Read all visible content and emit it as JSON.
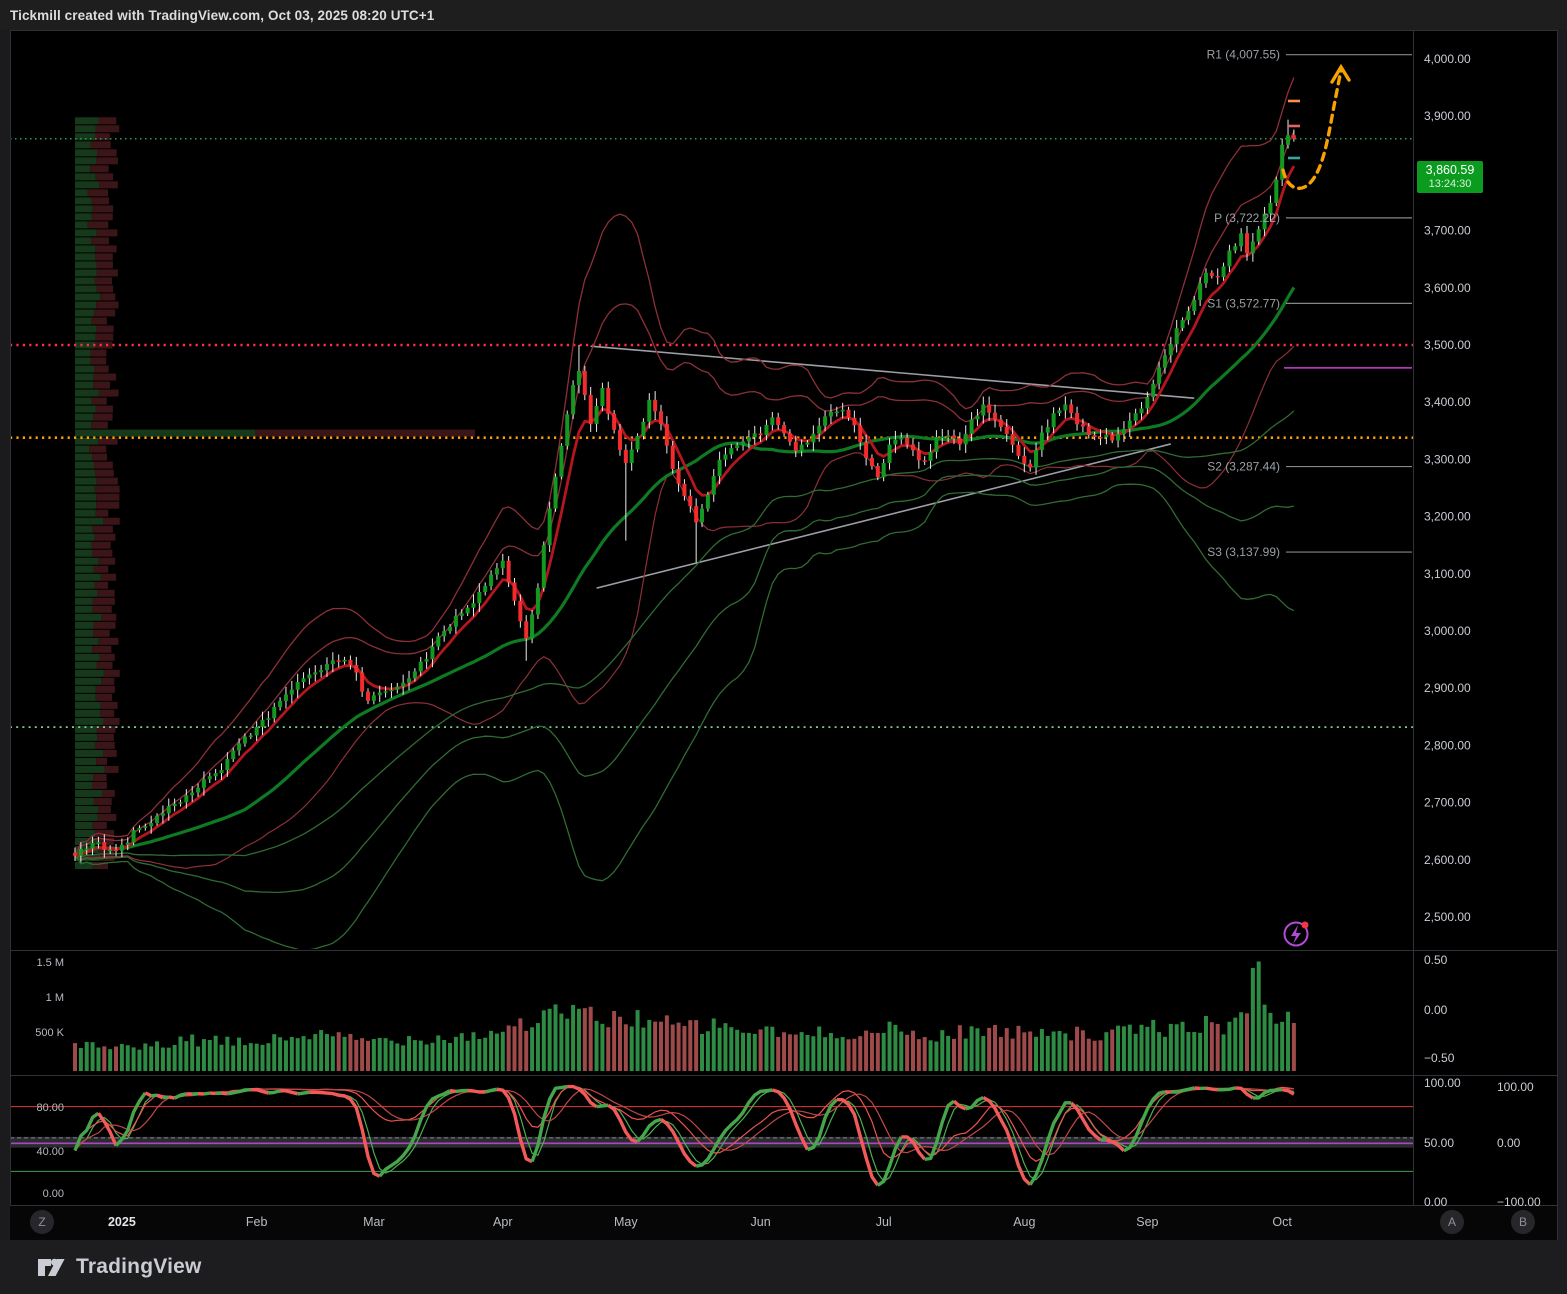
{
  "topbar": {
    "text": "Tickmill created with TradingView.com, Oct 03, 2025 08:20 UTC+1"
  },
  "logo": {
    "text": "TradingView"
  },
  "buttons": {
    "timezone": "Z",
    "source_a": "A",
    "source_b": "B"
  },
  "last_price": {
    "value": "3,860.59",
    "countdown": "13:24:30",
    "numeric": 3860.59
  },
  "price_scale": {
    "labels": [
      "4,000.00",
      "3,900.00",
      "3,800.00",
      "3,700.00",
      "3,600.00",
      "3,500.00",
      "3,400.00",
      "3,300.00",
      "3,200.00",
      "3,100.00",
      "3,000.00",
      "2,900.00",
      "2,800.00",
      "2,700.00",
      "2,600.00",
      "2,500.00"
    ]
  },
  "pivots": [
    {
      "label": "R1 (4,007.55)",
      "value": 4007.55
    },
    {
      "label": "P (3,722.22)",
      "value": 3722.22
    },
    {
      "label": "S1 (3,572.77)",
      "value": 3572.77
    },
    {
      "label": "S2 (3,287.44)",
      "value": 3287.44
    },
    {
      "label": "S3 (3,137.99)",
      "value": 3137.99
    }
  ],
  "volume_pane": {
    "left_labels": [
      "1.5 M",
      "1 M",
      "500 K"
    ],
    "right_labels": [
      "0.50",
      "0.00",
      "−0.50"
    ]
  },
  "osc_pane": {
    "left_labels": [
      "80.00",
      "40.00",
      "0.00"
    ],
    "right_labels_a": [
      "100.00",
      "50.00",
      "0.00"
    ],
    "right_labels_b": [
      "100.00",
      "0.00",
      "−100.00"
    ]
  },
  "time_axis": {
    "labels": [
      "2025",
      "Feb",
      "Mar",
      "Apr",
      "May",
      "Jun",
      "Jul",
      "Aug",
      "Sep",
      "Oct"
    ],
    "bar_index": [
      8,
      31,
      51,
      73,
      94,
      117,
      138,
      162,
      183,
      206
    ]
  },
  "colors": {
    "candle_up": "#13991f",
    "candle_down": "#f22c2c",
    "wick": "#ececec",
    "vol_up": "#2e8b43",
    "vol_down": "#9e4a4a",
    "profile_buy": "#17391b",
    "profile_sell": "#3c1518",
    "band_red": "#8c3038",
    "ema_red": "#b3161f",
    "basis_green": "#0e7a22",
    "band_green": "#2f6b33",
    "last_price_bg": "#0a9b1f",
    "last_price_line": "#2f9e4f",
    "hline_red": "#ff3040",
    "hline_orange": "#ff9d00",
    "hline_green_low": "#7bcf8c",
    "purple_line": "#cf3be0",
    "pivot_gray": "#9aa0a6",
    "trendline_gray": "#aeb1bb",
    "arrow_orange": "#f7a200",
    "osc_up": "#47a64c",
    "osc_down": "#f25a5a",
    "osc_thin_green": "#4caf50",
    "osc_thin_red": "#ef5350",
    "axis_text": "#c9cdd4",
    "pane_border": "#2e3138"
  },
  "chart_data": {
    "type": "candlestick",
    "title": "",
    "ylim": [
      2500,
      4000
    ],
    "bars": 209,
    "close_anchors": [
      [
        0,
        2606
      ],
      [
        3,
        2632
      ],
      [
        6,
        2615
      ],
      [
        8,
        2624
      ],
      [
        10,
        2648
      ],
      [
        13,
        2668
      ],
      [
        16,
        2694
      ],
      [
        19,
        2712
      ],
      [
        22,
        2738
      ],
      [
        25,
        2762
      ],
      [
        28,
        2798
      ],
      [
        31,
        2834
      ],
      [
        34,
        2862
      ],
      [
        37,
        2902
      ],
      [
        40,
        2926
      ],
      [
        43,
        2938
      ],
      [
        46,
        2952
      ],
      [
        48,
        2924
      ],
      [
        50,
        2874
      ],
      [
        53,
        2898
      ],
      [
        56,
        2908
      ],
      [
        59,
        2942
      ],
      [
        62,
        2986
      ],
      [
        65,
        3024
      ],
      [
        68,
        3052
      ],
      [
        71,
        3098
      ],
      [
        73,
        3124
      ],
      [
        75,
        3048
      ],
      [
        77,
        2986
      ],
      [
        79,
        3078
      ],
      [
        81,
        3218
      ],
      [
        83,
        3326
      ],
      [
        85,
        3430
      ],
      [
        86,
        3452
      ],
      [
        88,
        3366
      ],
      [
        90,
        3420
      ],
      [
        92,
        3348
      ],
      [
        94,
        3288
      ],
      [
        96,
        3338
      ],
      [
        98,
        3404
      ],
      [
        100,
        3358
      ],
      [
        102,
        3282
      ],
      [
        104,
        3234
      ],
      [
        106,
        3192
      ],
      [
        108,
        3244
      ],
      [
        110,
        3294
      ],
      [
        112,
        3324
      ],
      [
        114,
        3334
      ],
      [
        117,
        3346
      ],
      [
        119,
        3374
      ],
      [
        121,
        3348
      ],
      [
        123,
        3314
      ],
      [
        125,
        3334
      ],
      [
        127,
        3364
      ],
      [
        129,
        3388
      ],
      [
        131,
        3390
      ],
      [
        133,
        3354
      ],
      [
        135,
        3302
      ],
      [
        137,
        3274
      ],
      [
        139,
        3324
      ],
      [
        141,
        3344
      ],
      [
        143,
        3312
      ],
      [
        145,
        3292
      ],
      [
        147,
        3334
      ],
      [
        149,
        3344
      ],
      [
        151,
        3324
      ],
      [
        153,
        3364
      ],
      [
        155,
        3394
      ],
      [
        157,
        3372
      ],
      [
        159,
        3344
      ],
      [
        161,
        3304
      ],
      [
        163,
        3286
      ],
      [
        165,
        3344
      ],
      [
        167,
        3376
      ],
      [
        169,
        3396
      ],
      [
        171,
        3362
      ],
      [
        173,
        3348
      ],
      [
        175,
        3340
      ],
      [
        177,
        3338
      ],
      [
        179,
        3356
      ],
      [
        181,
        3376
      ],
      [
        183,
        3412
      ],
      [
        185,
        3458
      ],
      [
        187,
        3506
      ],
      [
        189,
        3548
      ],
      [
        191,
        3582
      ],
      [
        193,
        3622
      ],
      [
        195,
        3616
      ],
      [
        197,
        3662
      ],
      [
        199,
        3692
      ],
      [
        200,
        3656
      ],
      [
        202,
        3706
      ],
      [
        204,
        3752
      ],
      [
        205,
        3792
      ],
      [
        206,
        3848
      ],
      [
        207,
        3866
      ],
      [
        208,
        3860.59
      ]
    ],
    "wick_spikes": [
      [
        77,
        "low",
        2948
      ],
      [
        86,
        "high",
        3500
      ],
      [
        94,
        "low",
        3158
      ],
      [
        106,
        "low",
        3120
      ],
      [
        207,
        "high",
        3894
      ]
    ],
    "horizontal_lines": [
      {
        "price": 3860.59,
        "style": "dotted",
        "name": "last-price-line"
      },
      {
        "price": 3500,
        "style": "dotted",
        "name": "red-alert-line"
      },
      {
        "price": 3338,
        "style": "dotted",
        "name": "orange-poc-line"
      },
      {
        "price": 2832,
        "style": "dotted",
        "name": "green-low-line"
      },
      {
        "price": 3460,
        "style": "solid",
        "name": "purple-right-line",
        "right_only": true
      }
    ],
    "trendlines": [
      {
        "x1_bar": 88,
        "p1": 3498,
        "x2_bar": 191,
        "p2": 3407,
        "name": "descending"
      },
      {
        "x1_bar": 89,
        "p1": 3075,
        "x2_bar": 187,
        "p2": 3327,
        "name": "ascending"
      }
    ],
    "volume_profile_envelope": [
      [
        3892,
        38
      ],
      [
        3868,
        108
      ],
      [
        3848,
        62
      ],
      [
        3820,
        58
      ],
      [
        3800,
        66
      ],
      [
        3778,
        128
      ],
      [
        3755,
        92
      ],
      [
        3730,
        66
      ],
      [
        3712,
        80
      ],
      [
        3692,
        118
      ],
      [
        3665,
        132
      ],
      [
        3640,
        98
      ],
      [
        3615,
        82
      ],
      [
        3592,
        74
      ],
      [
        3575,
        138
      ],
      [
        3550,
        60
      ],
      [
        3530,
        48
      ],
      [
        3510,
        36
      ],
      [
        3488,
        42
      ],
      [
        3465,
        52
      ],
      [
        3440,
        70
      ],
      [
        3415,
        88
      ],
      [
        3392,
        70
      ],
      [
        3370,
        120
      ],
      [
        3355,
        215
      ],
      [
        3340,
        398
      ],
      [
        3328,
        262
      ],
      [
        3315,
        205
      ],
      [
        3300,
        158
      ],
      [
        3285,
        125
      ],
      [
        3268,
        148
      ],
      [
        3250,
        118
      ],
      [
        3235,
        95
      ],
      [
        3218,
        82
      ],
      [
        3200,
        88
      ],
      [
        3182,
        70
      ],
      [
        3165,
        55
      ],
      [
        3148,
        45
      ],
      [
        3130,
        38
      ],
      [
        3112,
        32
      ],
      [
        3095,
        48
      ],
      [
        3075,
        40
      ],
      [
        3055,
        52
      ],
      [
        3035,
        34
      ],
      [
        3015,
        30
      ],
      [
        2995,
        38
      ],
      [
        2975,
        45
      ],
      [
        2955,
        58
      ],
      [
        2935,
        88
      ],
      [
        2915,
        132
      ],
      [
        2898,
        162
      ],
      [
        2880,
        118
      ],
      [
        2862,
        92
      ],
      [
        2845,
        75
      ],
      [
        2828,
        92
      ],
      [
        2810,
        84
      ],
      [
        2792,
        70
      ],
      [
        2775,
        56
      ],
      [
        2758,
        62
      ],
      [
        2740,
        66
      ],
      [
        2722,
        88
      ],
      [
        2705,
        74
      ],
      [
        2688,
        64
      ],
      [
        2668,
        98
      ],
      [
        2648,
        126
      ],
      [
        2628,
        92
      ],
      [
        2608,
        70
      ],
      [
        2590,
        46
      ],
      [
        2578,
        34
      ]
    ],
    "volume_anchors_millions": [
      [
        0,
        0.35
      ],
      [
        10,
        0.3
      ],
      [
        20,
        0.42
      ],
      [
        30,
        0.38
      ],
      [
        40,
        0.5
      ],
      [
        50,
        0.42
      ],
      [
        60,
        0.45
      ],
      [
        70,
        0.5
      ],
      [
        75,
        0.62
      ],
      [
        80,
        0.72
      ],
      [
        85,
        0.85
      ],
      [
        90,
        0.68
      ],
      [
        95,
        0.75
      ],
      [
        100,
        0.65
      ],
      [
        105,
        0.6
      ],
      [
        110,
        0.62
      ],
      [
        115,
        0.55
      ],
      [
        120,
        0.52
      ],
      [
        125,
        0.48
      ],
      [
        130,
        0.55
      ],
      [
        135,
        0.5
      ],
      [
        140,
        0.58
      ],
      [
        145,
        0.45
      ],
      [
        150,
        0.52
      ],
      [
        155,
        0.58
      ],
      [
        160,
        0.5
      ],
      [
        165,
        0.6
      ],
      [
        170,
        0.52
      ],
      [
        175,
        0.48
      ],
      [
        180,
        0.55
      ],
      [
        184,
        0.62
      ],
      [
        188,
        0.55
      ],
      [
        192,
        0.65
      ],
      [
        196,
        0.6
      ],
      [
        199,
        0.72
      ],
      [
        202,
        1.5
      ],
      [
        203,
        0.9
      ],
      [
        205,
        0.78
      ],
      [
        207,
        0.7
      ],
      [
        208,
        0.55
      ]
    ],
    "oscillator": {
      "upper_level": 80,
      "lower_level": 20,
      "purple_level": 46,
      "band": [
        42,
        52
      ],
      "fast_period": 14,
      "smooth": 3,
      "slow_period": 28
    }
  }
}
